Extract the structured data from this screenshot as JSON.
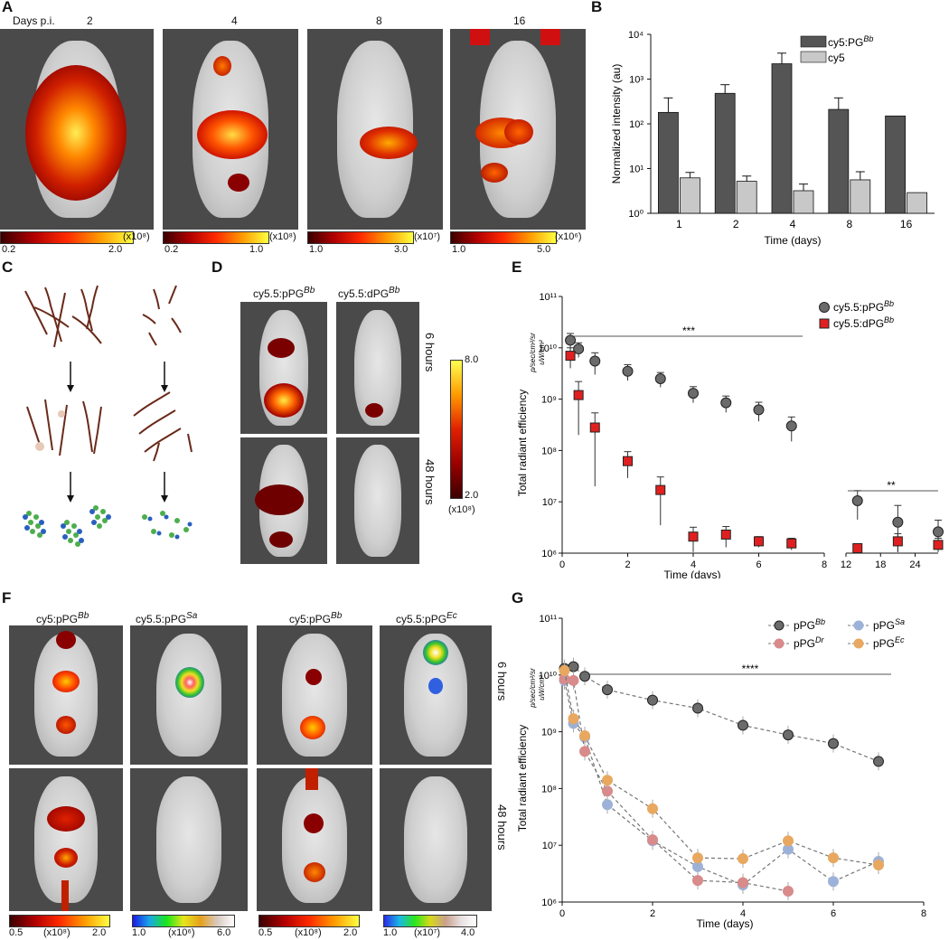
{
  "panels": {
    "A": {
      "letter": "A",
      "days_label": "Days p.i.",
      "days": [
        "2",
        "4",
        "8",
        "16"
      ],
      "scales": [
        {
          "min": "0.2",
          "max": "2.0",
          "unit": "(x10⁸)"
        },
        {
          "min": "0.2",
          "max": "1.0",
          "unit": "(x10⁸)"
        },
        {
          "min": "1.0",
          "max": "3.0",
          "unit": "(x10⁷)"
        },
        {
          "min": "1.0",
          "max": "5.0",
          "unit": "(x10⁶)"
        }
      ]
    },
    "B": {
      "letter": "B"
    },
    "C": {
      "letter": "C"
    },
    "D": {
      "letter": "D",
      "col1": "cy5.5:pPG",
      "col1_sup": "Bb",
      "col2": "cy5.5:dPG",
      "col2_sup": "Bb",
      "row1": "6 hours",
      "row2": "48 hours",
      "scale_max": "8.0",
      "scale_min": "2.0",
      "scale_unit": "(x10⁸)"
    },
    "E": {
      "letter": "E"
    },
    "F": {
      "letter": "F",
      "cols": [
        {
          "label": "cy5:pPG",
          "sup": "Bb"
        },
        {
          "label": "cy5.5:pPG",
          "sup": "Sa"
        },
        {
          "label": "cy5:pPG",
          "sup": "Bb"
        },
        {
          "label": "cy5.5:pPG",
          "sup": "Ec"
        }
      ],
      "row1": "6 hours",
      "row2": "48 hours",
      "scales": [
        {
          "min": "0.5",
          "max": "2.0",
          "unit": "(x10⁸)"
        },
        {
          "min": "1.0",
          "max": "6.0",
          "unit": "(x10⁶)"
        },
        {
          "min": "0.5",
          "max": "2.0",
          "unit": "(x10⁸)"
        },
        {
          "min": "1.0",
          "max": "4.0",
          "unit": "(x10⁷)"
        }
      ]
    },
    "G": {
      "letter": "G"
    }
  },
  "chart_data": [
    {
      "id": "B",
      "type": "bar",
      "ylabel": "Normalized intensity (au)",
      "xlabel": "Time (days)",
      "yscale": "log",
      "ylim": [
        1,
        10000
      ],
      "yticks": [
        "10⁰",
        "10¹",
        "10²",
        "10³",
        "10⁴"
      ],
      "categories": [
        "1",
        "2",
        "4",
        "8",
        "16"
      ],
      "series": [
        {
          "name": "cy5:PG",
          "sup": "Bb",
          "color": "#555555",
          "values": [
            180,
            480,
            2200,
            210,
            150
          ],
          "errors": [
            380,
            750,
            3800,
            380,
            0
          ]
        },
        {
          "name": "cy5",
          "sup": "",
          "color": "#c8c8c8",
          "values": [
            6.2,
            5.2,
            3.2,
            5.6,
            2.9
          ],
          "errors": [
            8.2,
            6.8,
            4.5,
            8.5,
            0
          ]
        }
      ],
      "legend": "top-right"
    },
    {
      "id": "E",
      "type": "scatter",
      "ylabel": "Total radiant efficiency",
      "yunit_num": "p/sec/cm²/sr",
      "yunit_den": "uW/cm²",
      "xlabel": "Time (days)",
      "yscale": "log",
      "ylim": [
        1000000,
        100000000000
      ],
      "yticks": [
        "10⁶",
        "10⁷",
        "10⁸",
        "10⁹",
        "10¹⁰",
        "10¹¹"
      ],
      "xticks_left": [
        "0",
        "2",
        "4",
        "6",
        "8"
      ],
      "xticks_right": [
        "12",
        "18",
        "24"
      ],
      "series": [
        {
          "name": "cy5.5:pPG",
          "sup": "Bb",
          "marker": "circle",
          "color": "#6b6b6b",
          "x": [
            0.25,
            0.5,
            1,
            2,
            3,
            4,
            5,
            6,
            7,
            14,
            21,
            28
          ],
          "y": [
            14000000000,
            9500000000,
            5500000000,
            3500000000,
            2500000000,
            1300000000,
            850000000,
            620000000,
            300000000,
            10500000,
            4000000,
            2600000
          ],
          "err": [
            5000000000,
            3000000000,
            2500000000,
            1200000000,
            800000000,
            450000000,
            300000000,
            250000000,
            150000000,
            6000000,
            4500000,
            1800000
          ]
        },
        {
          "name": "cy5.5:dPG",
          "sup": "Bb",
          "marker": "square",
          "color": "#e02020",
          "x": [
            0.25,
            0.5,
            1,
            2,
            3,
            4,
            5,
            6,
            7,
            14,
            21,
            28
          ],
          "y": [
            7000000000,
            1200000000,
            280000000,
            62000000,
            17000000,
            2100000,
            2300000,
            1700000,
            1550000,
            1250000,
            1700000,
            1450000
          ],
          "err": [
            3000000000,
            1000000000,
            260000000,
            33000000,
            13500000,
            1100000,
            1000000,
            400000,
            400000,
            250000,
            700000,
            500000
          ]
        }
      ],
      "annotations": [
        "***",
        "**"
      ],
      "legend": "top-right"
    },
    {
      "id": "G",
      "type": "line",
      "ylabel": "Total radiant efficiency",
      "yunit_num": "p/sec/cm²/sr",
      "yunit_den": "uW/cm²",
      "xlabel": "Time (days)",
      "yscale": "log",
      "ylim": [
        1000000,
        100000000000
      ],
      "xlim": [
        0,
        8
      ],
      "yticks": [
        "10⁶",
        "10⁷",
        "10⁸",
        "10⁹",
        "10¹⁰",
        "10¹¹"
      ],
      "xticks": [
        "0",
        "2",
        "4",
        "6",
        "8"
      ],
      "x": [
        0.05,
        0.25,
        0.5,
        1,
        2,
        3,
        4,
        5,
        6,
        7
      ],
      "series": [
        {
          "name": "pPG",
          "sup": "Bb",
          "color": "#6b6b6b",
          "y": [
            13000000000,
            14000000000,
            9500000000,
            5500000000,
            3600000000,
            2600000000,
            1300000000,
            880000000,
            620000000,
            300000000
          ]
        },
        {
          "name": "pPG",
          "sup": "Sa",
          "color": "#9db2d8",
          "y": [
            8000000000,
            1400000000,
            800000000,
            52000000,
            12000000,
            4200000,
            2000000,
            8500000,
            2300000,
            5200000
          ]
        },
        {
          "name": "pPG",
          "sup": "Dr",
          "color": "#d98a8a",
          "y": [
            8500000000,
            8000000000,
            450000000,
            90000000,
            12500000,
            2400000,
            2200000,
            1550000,
            null,
            null
          ]
        },
        {
          "name": "pPG",
          "sup": "Ec",
          "color": "#e8a860",
          "y": [
            12000000000,
            1700000000,
            850000000,
            140000000,
            44000000,
            6000000,
            5800000,
            12000000,
            6000000,
            4500000
          ]
        }
      ],
      "annotations": [
        "****"
      ],
      "legend": "top-right"
    }
  ]
}
